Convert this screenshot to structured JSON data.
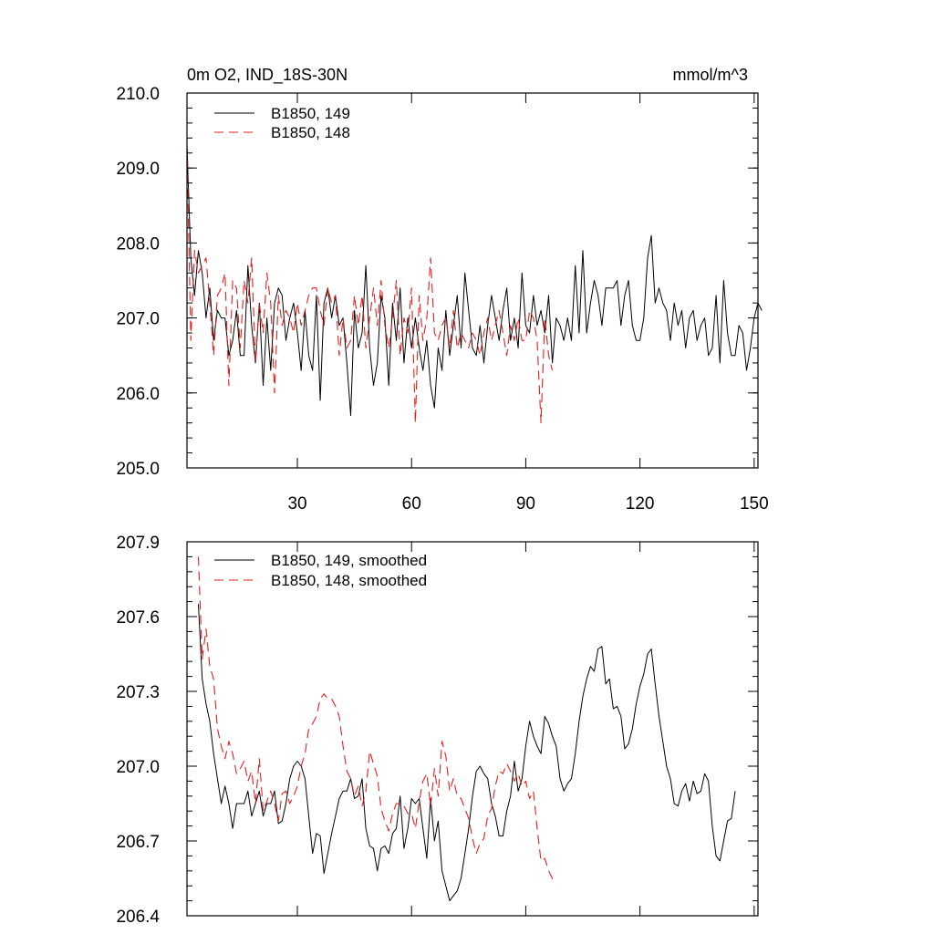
{
  "chart_data": [
    {
      "type": "line",
      "title": "0m O2, IND_18S-30N",
      "units": "mmol/m^3",
      "xlabel": "",
      "ylabel": "",
      "xlim": [
        1,
        151
      ],
      "ylim": [
        205.0,
        210.0
      ],
      "xticks": [
        "30",
        "60",
        "90",
        "120",
        "150"
      ],
      "yticks": [
        "205.0",
        "206.0",
        "207.0",
        "208.0",
        "209.0",
        "210.0"
      ],
      "legend_position": "top-left",
      "series": [
        {
          "name": "B1850, 149",
          "color": "#000000",
          "dash": "solid",
          "x_start": 1,
          "values": [
            209.3,
            207.8,
            207.3,
            207.9,
            207.6,
            207.0,
            207.4,
            206.7,
            207.1,
            207.0,
            207.0,
            206.5,
            206.7,
            207.1,
            206.5,
            206.5,
            207.7,
            206.9,
            206.4,
            207.2,
            206.1,
            207.0,
            206.3,
            207.2,
            207.4,
            207.3,
            206.7,
            207.0,
            207.2,
            206.8,
            206.3,
            207.1,
            206.5,
            206.3,
            207.3,
            205.9,
            207.2,
            207.4,
            207.0,
            207.3,
            206.9,
            207.0,
            206.4,
            205.7,
            207.1,
            206.6,
            206.8,
            207.7,
            206.6,
            206.1,
            206.4,
            207.3,
            207.0,
            206.1,
            207.2,
            206.7,
            207.4,
            206.4,
            207.0,
            206.6,
            207.0,
            206.6,
            206.3,
            206.7,
            206.1,
            205.8,
            206.6,
            206.3,
            207.1,
            206.5,
            206.9,
            207.3,
            206.6,
            207.6,
            207.1,
            206.6,
            206.5,
            206.9,
            206.4,
            206.9,
            207.3,
            207.0,
            206.7,
            207.1,
            207.4,
            206.7,
            207.0,
            206.6,
            207.6,
            206.9,
            206.8,
            207.3,
            206.9,
            207.1,
            206.8,
            207.3,
            206.4,
            207.0,
            206.9,
            206.7,
            207.0,
            206.7,
            207.7,
            206.8,
            207.9,
            206.8,
            207.2,
            207.5,
            207.3,
            206.9,
            207.4,
            207.4,
            207.4,
            207.5,
            206.9,
            207.3,
            207.5,
            206.9,
            206.7,
            206.7,
            207.0,
            207.8,
            208.1,
            207.2,
            207.4,
            207.2,
            207.1,
            206.7,
            207.2,
            206.9,
            207.1,
            206.6,
            207.0,
            207.1,
            206.7,
            206.9,
            207.0,
            206.5,
            206.6,
            207.3,
            206.4,
            207.5,
            206.8,
            206.5,
            206.5,
            206.9,
            206.8,
            206.3,
            206.6,
            207.0,
            207.2,
            207.1
          ],
          "y_end": 207.1
        },
        {
          "name": "B1850, 148",
          "color": "#e0201f",
          "dash": "dashed",
          "x_start": 1,
          "values": [
            209.3,
            206.7,
            207.9,
            207.6,
            207.7,
            207.8,
            207.2,
            206.5,
            207.3,
            207.4,
            207.6,
            206.1,
            207.5,
            207.4,
            206.6,
            207.5,
            207.2,
            207.8,
            206.4,
            207.2,
            206.8,
            207.6,
            207.2,
            206.0,
            207.3,
            206.9,
            207.1,
            207.0,
            206.8,
            207.2,
            206.9,
            207.1,
            207.3,
            207.4,
            207.4,
            207.1,
            206.9,
            207.4,
            207.2,
            207.3,
            206.5,
            207.0,
            206.6,
            206.7,
            207.3,
            206.9,
            207.3,
            206.6,
            207.0,
            207.4,
            206.9,
            207.5,
            206.9,
            206.6,
            207.0,
            207.5,
            206.5,
            207.0,
            206.8,
            207.4,
            205.6,
            207.3,
            206.7,
            207.0,
            207.8,
            206.8,
            206.7,
            206.9,
            207.0,
            206.6,
            207.1,
            206.6,
            206.8,
            206.7,
            206.6,
            206.8,
            206.7,
            206.5,
            206.8,
            207.0,
            206.7,
            206.9,
            207.1,
            206.8,
            206.5,
            206.9,
            206.7,
            207.0,
            206.7,
            206.7,
            207.1,
            207.0,
            206.7,
            205.6,
            207.0,
            206.5,
            206.3
          ],
          "y_end": 206.3
        }
      ]
    },
    {
      "type": "line",
      "title": "",
      "xlim": [
        1,
        151
      ],
      "ylim": [
        206.4,
        207.9
      ],
      "yticks": [
        "206.4",
        "206.7",
        "207.0",
        "207.3",
        "207.6",
        "207.9"
      ],
      "legend_position": "top-left",
      "series": [
        {
          "name": "B1850, 149, smoothed",
          "color": "#000000",
          "dash": "solid",
          "x_start": 4,
          "values": [
            207.65,
            207.35,
            207.25,
            207.18,
            207.05,
            206.95,
            206.85,
            206.92,
            206.85,
            206.75,
            206.85,
            206.85,
            206.85,
            206.9,
            206.8,
            206.85,
            206.9,
            206.8,
            206.85,
            206.85,
            206.9,
            206.77,
            206.78,
            206.85,
            206.95,
            207.0,
            207.02,
            207.0,
            206.95,
            206.8,
            206.65,
            206.73,
            206.72,
            206.57,
            206.65,
            206.73,
            206.8,
            206.87,
            206.9,
            206.9,
            206.95,
            206.87,
            206.88,
            206.95,
            206.75,
            206.68,
            206.67,
            206.58,
            206.67,
            206.68,
            206.65,
            206.73,
            206.75,
            206.88,
            206.67,
            206.75,
            206.87,
            206.85,
            206.87,
            206.75,
            206.63,
            206.87,
            206.7,
            206.78,
            206.58,
            206.52,
            206.46,
            206.48,
            206.5,
            206.55,
            206.65,
            206.75,
            206.88,
            206.98,
            207.0,
            206.97,
            206.95,
            206.85,
            206.8,
            206.72,
            206.72,
            206.82,
            206.88,
            207.02,
            206.9,
            206.95,
            207.08,
            207.18,
            207.12,
            207.08,
            207.05,
            207.2,
            207.17,
            207.12,
            207.08,
            206.95,
            206.9,
            206.93,
            206.95,
            207.05,
            207.18,
            207.28,
            207.35,
            207.4,
            207.38,
            207.47,
            207.48,
            207.33,
            207.35,
            207.23,
            207.24,
            207.2,
            207.07,
            207.09,
            207.15,
            207.25,
            207.32,
            207.37,
            207.45,
            207.47,
            207.33,
            207.2,
            207.1,
            207.0,
            206.95,
            206.85,
            206.84,
            206.9,
            206.93,
            206.86,
            206.94,
            206.89,
            206.9,
            206.97,
            206.94,
            206.76,
            206.64,
            206.62,
            206.7,
            206.78,
            206.79,
            206.9
          ],
          "y_end": 206.9
        },
        {
          "name": "B1850, 148, smoothed",
          "color": "#e0201f",
          "dash": "dashed",
          "x_start": 4,
          "values": [
            207.84,
            207.43,
            207.55,
            207.4,
            207.35,
            207.15,
            207.08,
            207.03,
            207.1,
            207.05,
            206.97,
            206.99,
            207.02,
            206.94,
            206.98,
            206.85,
            207.03,
            206.82,
            206.86,
            206.9,
            206.85,
            206.78,
            206.89,
            206.9,
            206.85,
            206.88,
            206.92,
            207.0,
            207.05,
            207.15,
            207.17,
            207.2,
            207.27,
            207.29,
            207.27,
            207.27,
            207.24,
            207.2,
            207.08,
            206.98,
            206.95,
            206.88,
            206.92,
            206.84,
            206.9,
            207.06,
            207.01,
            206.96,
            206.83,
            206.78,
            206.74,
            206.81,
            206.85,
            206.85,
            206.84,
            206.81,
            206.81,
            206.75,
            206.86,
            206.94,
            206.97,
            206.84,
            206.99,
            206.88,
            207.1,
            207.04,
            206.9,
            206.95,
            206.88,
            206.87,
            206.83,
            206.79,
            206.71,
            206.65,
            206.69,
            206.71,
            206.8,
            206.83,
            206.92,
            206.98,
            206.97,
            207.01,
            206.98,
            206.94,
            206.97,
            206.92,
            206.94,
            206.87,
            206.9,
            206.75,
            206.62,
            206.63,
            206.58,
            206.55,
            206.53
          ],
          "y_end": 206.53
        }
      ]
    }
  ]
}
